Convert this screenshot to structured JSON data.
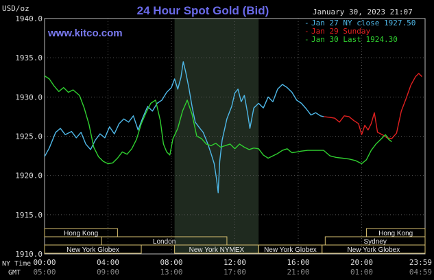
{
  "header": {
    "unit": "USD/oz",
    "title": "24 Hour Spot Gold (Bid)",
    "datetime": "January 30, 2023 21:07",
    "website": "www.kitco.com"
  },
  "legend": [
    {
      "label": "Jan 27 NY close 1927.50",
      "color": "#4fb8e8"
    },
    {
      "label": "Jan 29 Sunday",
      "color": "#e02020"
    },
    {
      "label": "Jan 30 Last 1924.30",
      "color": "#30d030"
    }
  ],
  "axis": {
    "nytime_label": "NY Time",
    "gmt_label": "GMT",
    "ny_ticks": [
      "00:00",
      "04:00",
      "08:00",
      "12:00",
      "16:00",
      "20:00",
      "23:59"
    ],
    "gmt_ticks": [
      "05:00",
      "09:00",
      "13:00",
      "17:00",
      "21:00",
      "01:00",
      "04:59"
    ],
    "y_ticks": [
      "1940.0",
      "1935.0",
      "1930.0",
      "1925.0",
      "1920.0",
      "1915.0",
      "1910.0"
    ]
  },
  "sessions": [
    {
      "label": "Hong Kong",
      "start": 0,
      "end": 4.6,
      "row": 0
    },
    {
      "label": "Hong Kong",
      "start": 20.3,
      "end": 24,
      "row": 0
    },
    {
      "label": "London",
      "start": 3.6,
      "end": 11.5,
      "row": 1
    },
    {
      "label": "Sydney",
      "start": 17.7,
      "end": 24,
      "row": 1
    },
    {
      "label": "New York Globex",
      "start": 0,
      "end": 6.1,
      "row": 2
    },
    {
      "label": "New York NYMEX",
      "start": 8.2,
      "end": 13.5,
      "row": 2
    },
    {
      "label": "New York Globex",
      "start": 13.5,
      "end": 17.5,
      "row": 2
    },
    {
      "label": "New York Globex",
      "start": 17.5,
      "end": 24,
      "row": 2
    }
  ],
  "chart_data": {
    "type": "line",
    "xlabel": "NY Time",
    "ylabel": "USD/oz",
    "xlim": [
      0,
      24
    ],
    "ylim": [
      1910,
      1940
    ],
    "grid": true,
    "shaded_range": [
      8.2,
      13.5
    ],
    "series": [
      {
        "name": "Jan 27 NY close 1927.50",
        "color": "#4fb8e8",
        "points": [
          [
            0,
            1922.4
          ],
          [
            0.3,
            1923.5
          ],
          [
            0.7,
            1925.5
          ],
          [
            1.0,
            1926.0
          ],
          [
            1.3,
            1925.2
          ],
          [
            1.7,
            1925.6
          ],
          [
            2.0,
            1924.8
          ],
          [
            2.3,
            1925.5
          ],
          [
            2.6,
            1924.0
          ],
          [
            2.9,
            1923.3
          ],
          [
            3.2,
            1924.5
          ],
          [
            3.5,
            1925.3
          ],
          [
            3.8,
            1924.8
          ],
          [
            4.1,
            1926.2
          ],
          [
            4.4,
            1925.3
          ],
          [
            4.7,
            1926.6
          ],
          [
            5.0,
            1927.2
          ],
          [
            5.3,
            1926.8
          ],
          [
            5.6,
            1927.6
          ],
          [
            5.9,
            1925.8
          ],
          [
            6.2,
            1927.4
          ],
          [
            6.5,
            1928.8
          ],
          [
            6.8,
            1928.2
          ],
          [
            7.1,
            1929.2
          ],
          [
            7.4,
            1929.6
          ],
          [
            7.7,
            1930.6
          ],
          [
            8.0,
            1931.2
          ],
          [
            8.2,
            1932.3
          ],
          [
            8.4,
            1931.0
          ],
          [
            8.6,
            1932.5
          ],
          [
            8.75,
            1934.5
          ],
          [
            8.9,
            1933.2
          ],
          [
            9.1,
            1931.2
          ],
          [
            9.3,
            1928.8
          ],
          [
            9.5,
            1926.8
          ],
          [
            9.8,
            1926.0
          ],
          [
            10.0,
            1925.5
          ],
          [
            10.3,
            1924.0
          ],
          [
            10.5,
            1922.8
          ],
          [
            10.7,
            1921.5
          ],
          [
            10.85,
            1919.5
          ],
          [
            10.95,
            1917.8
          ],
          [
            11.05,
            1921.8
          ],
          [
            11.2,
            1924.5
          ],
          [
            11.5,
            1927.2
          ],
          [
            11.8,
            1928.8
          ],
          [
            12.0,
            1930.5
          ],
          [
            12.2,
            1931.0
          ],
          [
            12.4,
            1929.4
          ],
          [
            12.6,
            1930.2
          ],
          [
            12.8,
            1928.0
          ],
          [
            12.95,
            1926.0
          ],
          [
            13.2,
            1928.6
          ],
          [
            13.5,
            1929.2
          ],
          [
            13.8,
            1928.6
          ],
          [
            14.1,
            1930.0
          ],
          [
            14.4,
            1929.4
          ],
          [
            14.7,
            1931.0
          ],
          [
            15.0,
            1931.6
          ],
          [
            15.3,
            1931.2
          ],
          [
            15.6,
            1930.6
          ],
          [
            15.9,
            1929.6
          ],
          [
            16.2,
            1929.2
          ],
          [
            16.5,
            1928.5
          ],
          [
            16.8,
            1927.7
          ],
          [
            17.1,
            1928.0
          ],
          [
            17.4,
            1927.6
          ],
          [
            17.6,
            1927.5
          ]
        ]
      },
      {
        "name": "Jan 29 Sunday",
        "color": "#e02020",
        "points": [
          [
            17.6,
            1927.5
          ],
          [
            18.0,
            1927.4
          ],
          [
            18.3,
            1927.3
          ],
          [
            18.6,
            1926.8
          ],
          [
            18.9,
            1927.6
          ],
          [
            19.2,
            1927.5
          ],
          [
            19.5,
            1927.0
          ],
          [
            19.8,
            1926.6
          ],
          [
            20.0,
            1925.2
          ],
          [
            20.2,
            1926.4
          ],
          [
            20.4,
            1925.8
          ],
          [
            20.6,
            1926.6
          ],
          [
            20.8,
            1928.0
          ],
          [
            21.0,
            1925.5
          ],
          [
            21.3,
            1925.2
          ],
          [
            21.6,
            1924.8
          ],
          [
            21.9,
            1924.7
          ],
          [
            22.2,
            1925.4
          ],
          [
            22.5,
            1928.2
          ],
          [
            22.8,
            1929.8
          ],
          [
            23.1,
            1931.5
          ],
          [
            23.4,
            1932.6
          ],
          [
            23.6,
            1933.0
          ],
          [
            23.8,
            1932.6
          ]
        ]
      },
      {
        "name": "Jan 30 Last 1924.30",
        "color": "#30d030",
        "points": [
          [
            0,
            1932.7
          ],
          [
            0.3,
            1932.3
          ],
          [
            0.6,
            1931.4
          ],
          [
            0.9,
            1930.7
          ],
          [
            1.2,
            1931.2
          ],
          [
            1.5,
            1930.6
          ],
          [
            1.8,
            1930.9
          ],
          [
            2.2,
            1930.2
          ],
          [
            2.5,
            1928.6
          ],
          [
            2.8,
            1926.5
          ],
          [
            3.1,
            1923.6
          ],
          [
            3.4,
            1922.4
          ],
          [
            3.7,
            1921.8
          ],
          [
            4.0,
            1921.5
          ],
          [
            4.3,
            1921.6
          ],
          [
            4.6,
            1922.2
          ],
          [
            4.9,
            1923.0
          ],
          [
            5.2,
            1922.7
          ],
          [
            5.5,
            1923.4
          ],
          [
            5.8,
            1924.6
          ],
          [
            6.1,
            1926.6
          ],
          [
            6.4,
            1928.0
          ],
          [
            6.7,
            1929.2
          ],
          [
            7.0,
            1929.6
          ],
          [
            7.3,
            1927.0
          ],
          [
            7.5,
            1924.0
          ],
          [
            7.7,
            1923.0
          ],
          [
            7.9,
            1922.6
          ],
          [
            8.1,
            1924.7
          ],
          [
            8.4,
            1926.0
          ],
          [
            8.7,
            1928.2
          ],
          [
            9.0,
            1929.6
          ],
          [
            9.3,
            1927.8
          ],
          [
            9.6,
            1925.0
          ],
          [
            9.9,
            1924.7
          ],
          [
            10.2,
            1924.0
          ],
          [
            10.5,
            1923.8
          ],
          [
            10.8,
            1924.1
          ],
          [
            11.1,
            1923.6
          ],
          [
            11.4,
            1923.8
          ],
          [
            11.7,
            1924.0
          ],
          [
            12.0,
            1923.4
          ],
          [
            12.3,
            1924.0
          ],
          [
            12.6,
            1923.6
          ],
          [
            12.9,
            1923.3
          ],
          [
            13.2,
            1923.5
          ],
          [
            13.5,
            1923.4
          ],
          [
            13.8,
            1922.6
          ],
          [
            14.1,
            1922.2
          ],
          [
            14.4,
            1922.5
          ],
          [
            14.7,
            1922.8
          ],
          [
            15.0,
            1923.2
          ],
          [
            15.3,
            1923.4
          ],
          [
            15.6,
            1922.9
          ],
          [
            15.9,
            1923.0
          ],
          [
            16.2,
            1923.1
          ],
          [
            16.6,
            1923.2
          ],
          [
            17.0,
            1923.2
          ],
          [
            17.6,
            1923.2
          ],
          [
            18.0,
            1922.5
          ],
          [
            18.4,
            1922.3
          ],
          [
            18.8,
            1922.2
          ],
          [
            19.2,
            1922.1
          ],
          [
            19.6,
            1921.9
          ],
          [
            20.0,
            1921.5
          ],
          [
            20.3,
            1922.0
          ],
          [
            20.6,
            1923.2
          ],
          [
            20.9,
            1924.0
          ],
          [
            21.2,
            1924.6
          ],
          [
            21.5,
            1925.2
          ],
          [
            21.7,
            1924.6
          ],
          [
            21.9,
            1924.3
          ]
        ]
      }
    ]
  }
}
